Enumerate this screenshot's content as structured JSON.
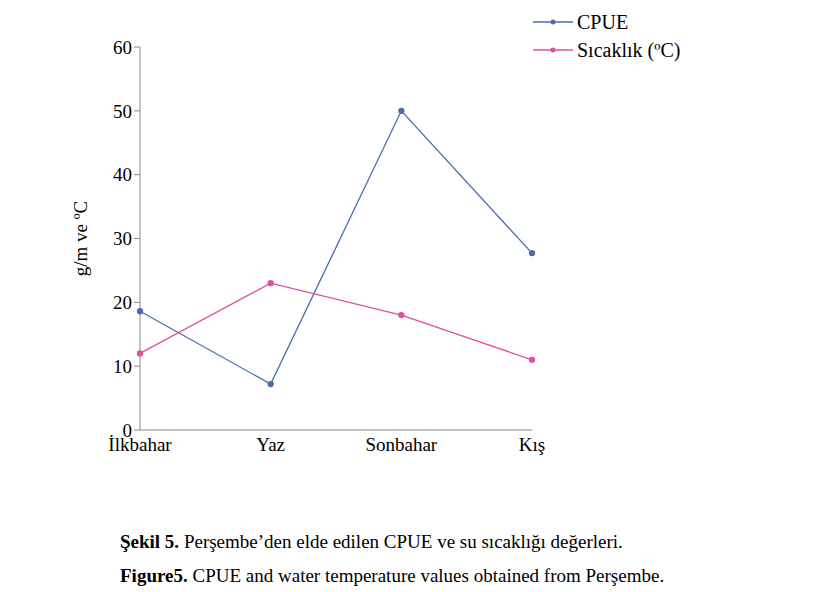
{
  "chart_data": {
    "type": "line",
    "categories": [
      "İlkbahar",
      "Yaz",
      "Sonbahar",
      "Kış"
    ],
    "series": [
      {
        "name": "CPUE",
        "color": "#4a6ea9",
        "marker": "circle",
        "values": [
          18.6,
          7.2,
          50,
          27.7
        ]
      },
      {
        "name": "Sıcaklık (ºC)",
        "color": "#e0509b",
        "marker": "circle",
        "values": [
          12,
          23,
          18,
          11
        ]
      }
    ],
    "y_label": "g/m ve ºC",
    "ylim": [
      0,
      60
    ],
    "yticks": [
      0,
      10,
      20,
      30,
      40,
      50,
      60
    ],
    "grid": false,
    "legend": "upper right",
    "caption": [
      {
        "label": "Şekil 5.",
        "text": "Perşembe’den elde edilen CPUE ve su sıcaklığı değerleri."
      },
      {
        "label": "Figure5.",
        "text": "CPUE and water temperature values obtained from Perşembe."
      }
    ]
  }
}
